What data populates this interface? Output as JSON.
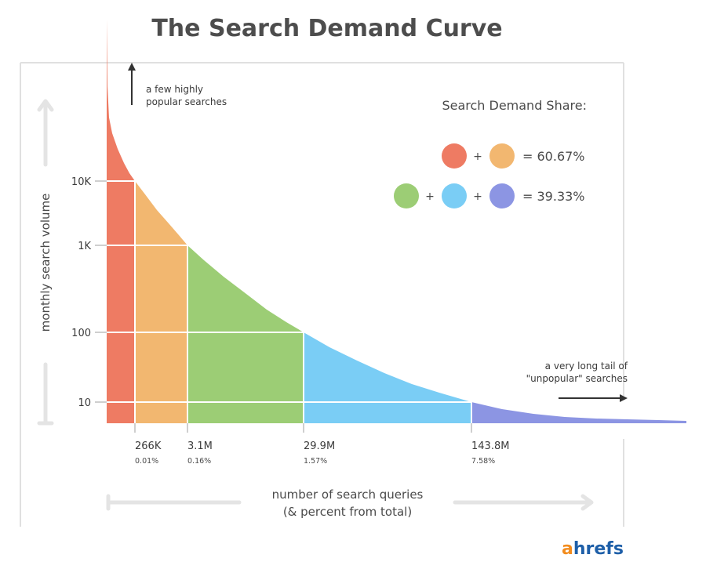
{
  "chart_data": {
    "type": "area",
    "title": "The Search Demand Curve",
    "ylabel": "monthly search volume",
    "xlabel_line1": "number of search queries",
    "xlabel_line2": "(& percent from total)",
    "y_scale": "log",
    "y_ticks": [
      "10K",
      "1K",
      "100",
      "10"
    ],
    "y_tick_values": [
      10000,
      1000,
      100,
      10
    ],
    "x_ticks": [
      {
        "label": "266K",
        "percent": "0.01%",
        "queries_millions": 0.266
      },
      {
        "label": "3.1M",
        "percent": "0.16%",
        "queries_millions": 3.1
      },
      {
        "label": "29.9M",
        "percent": "1.57%",
        "queries_millions": 29.9
      },
      {
        "label": "143.8M",
        "percent": "7.58%",
        "queries_millions": 143.8
      }
    ],
    "segments": [
      {
        "volume_range": "10K+",
        "color": "#ee7b63"
      },
      {
        "volume_range": "1K-10K",
        "color": "#f2b770"
      },
      {
        "volume_range": "100-1K",
        "color": "#9ccd75"
      },
      {
        "volume_range": "10-100",
        "color": "#7acdf5"
      },
      {
        "volume_range": "<10",
        "color": "#8c95e3"
      }
    ],
    "annotations": {
      "top_line1": "a few highly",
      "top_line2": "popular searches",
      "tail_line1": "a very long tail of",
      "tail_line2": "\"unpopular\" searches"
    },
    "legend": {
      "title": "Search Demand Share:",
      "rows": [
        {
          "colors": [
            "#ee7b63",
            "#f2b770"
          ],
          "value": "60.67%"
        },
        {
          "colors": [
            "#9ccd75",
            "#7acdf5",
            "#8c95e3"
          ],
          "value": "39.33%"
        }
      ],
      "placement": "top-right"
    },
    "grid": false
  },
  "brand": {
    "logo_first": "a",
    "logo_rest": "hrefs",
    "logo_first_color": "#f28c1e",
    "logo_rest_color": "#1e5fa8"
  }
}
